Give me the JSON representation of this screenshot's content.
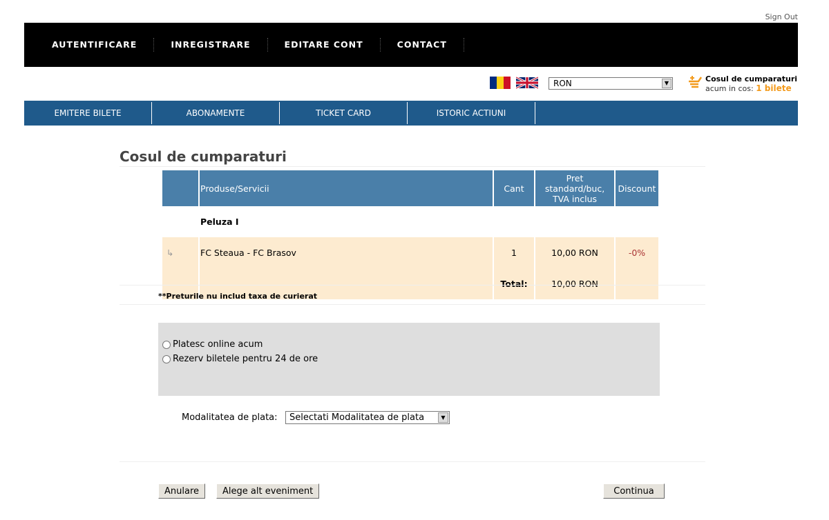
{
  "header": {
    "sign_out": "Sign Out",
    "top_nav": [
      "AUTENTIFICARE",
      "INREGISTRARE",
      "EDITARE CONT",
      "CONTACT"
    ],
    "currency": "RON",
    "cart": {
      "title": "Cosul de cumparaturi",
      "status_prefix": "acum in cos:",
      "count": "1 bilete"
    }
  },
  "main_nav": [
    "EMITERE BILETE",
    "ABONAMENTE",
    "TICKET CARD",
    "ISTORIC ACTIUNI"
  ],
  "page_title": "Cosul de cumparaturi",
  "table": {
    "headers": [
      "",
      "Produse/Servicii",
      "Cant",
      "Pret standard/buc, TVA inclus",
      "Discount"
    ],
    "group": "Peluza I",
    "rows": [
      {
        "product": "FC Steaua - FC Brasov",
        "qty": "1",
        "price": "10,00 RON",
        "discount": "-0%"
      }
    ],
    "total_label": "Total:",
    "total": "10,00 RON"
  },
  "note": "**Preturile nu includ taxa de curierat",
  "options": [
    "Platesc online acum",
    "Rezerv biletele pentru 24 de ore"
  ],
  "payment": {
    "label": "Modalitatea de plata:",
    "selected": "Selectati Modalitatea de plata"
  },
  "buttons": {
    "cancel": "Anulare",
    "other_event": "Alege alt eveniment",
    "continue": "Continua"
  },
  "colors": {
    "nav": "#1f5a8b",
    "table_header": "#4a7fa9",
    "row": "#fdebd0",
    "accent": "#f39a1b"
  }
}
